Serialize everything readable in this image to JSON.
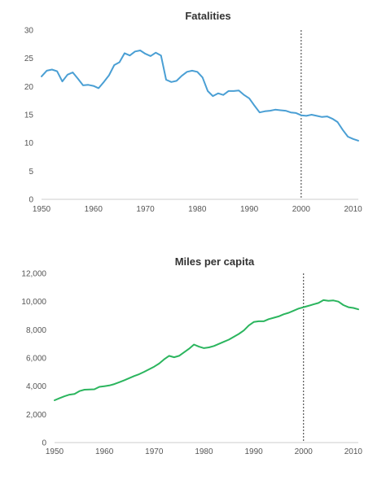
{
  "chart_data": [
    {
      "type": "line",
      "title": "Fatalities",
      "xlabel": "",
      "ylabel": "",
      "xlim": [
        1950,
        2011
      ],
      "ylim": [
        0,
        30
      ],
      "x_ticks": [
        1950,
        1960,
        1970,
        1980,
        1990,
        2000,
        2010
      ],
      "y_ticks": [
        0,
        5,
        10,
        15,
        20,
        25,
        30
      ],
      "y_tick_labels": [
        "0",
        "5",
        "10",
        "15",
        "20",
        "25",
        "30"
      ],
      "x_tick_labels": [
        "1950",
        "1960",
        "1970",
        "1980",
        "1990",
        "2000",
        "2010"
      ],
      "grid": false,
      "legend": false,
      "reference_line_x": 2000,
      "color": "#4a9fd4",
      "series": [
        {
          "x": [
            1950,
            1951,
            1952,
            1953,
            1954,
            1955,
            1956,
            1957,
            1958,
            1959,
            1960,
            1961,
            1962,
            1963,
            1964,
            1965,
            1966,
            1967,
            1968,
            1969,
            1970,
            1971,
            1972,
            1973,
            1974,
            1975,
            1976,
            1977,
            1978,
            1979,
            1980,
            1981,
            1982,
            1983,
            1984,
            1985,
            1986,
            1987,
            1988,
            1989,
            1990,
            1991,
            1992,
            1993,
            1994,
            1995,
            1996,
            1997,
            1998,
            1999,
            2000,
            2001,
            2002,
            2003,
            2004,
            2005,
            2006,
            2007,
            2008,
            2009,
            2010,
            2011
          ],
          "values": [
            21.8,
            22.8,
            23.0,
            22.7,
            20.9,
            22.1,
            22.5,
            21.4,
            20.2,
            20.3,
            20.1,
            19.7,
            20.8,
            22.0,
            23.8,
            24.3,
            25.9,
            25.5,
            26.2,
            26.4,
            25.8,
            25.4,
            26.0,
            25.5,
            21.2,
            20.8,
            21.0,
            21.9,
            22.6,
            22.8,
            22.6,
            21.6,
            19.2,
            18.3,
            18.8,
            18.5,
            19.2,
            19.2,
            19.3,
            18.5,
            17.9,
            16.6,
            15.4,
            15.6,
            15.7,
            15.9,
            15.8,
            15.7,
            15.4,
            15.3,
            14.9,
            14.8,
            15.0,
            14.8,
            14.6,
            14.7,
            14.3,
            13.7,
            12.3,
            11.1,
            10.7,
            10.4
          ]
        }
      ]
    },
    {
      "type": "line",
      "title": "Miles per capita",
      "xlabel": "",
      "ylabel": "",
      "xlim": [
        1950,
        2011
      ],
      "ylim": [
        0,
        12000
      ],
      "x_ticks": [
        1950,
        1960,
        1970,
        1980,
        1990,
        2000,
        2010
      ],
      "y_ticks": [
        0,
        2000,
        4000,
        6000,
        8000,
        10000,
        12000
      ],
      "y_tick_labels": [
        "0",
        "2,000",
        "4,000",
        "6,000",
        "8,000",
        "10,000",
        "12,000"
      ],
      "x_tick_labels": [
        "1950",
        "1960",
        "1970",
        "1980",
        "1990",
        "2000",
        "2010"
      ],
      "grid": false,
      "legend": false,
      "reference_line_x": 2000,
      "color": "#2bb55e",
      "series": [
        {
          "x": [
            1950,
            1951,
            1952,
            1953,
            1954,
            1955,
            1956,
            1957,
            1958,
            1959,
            1960,
            1961,
            1962,
            1963,
            1964,
            1965,
            1966,
            1967,
            1968,
            1969,
            1970,
            1971,
            1972,
            1973,
            1974,
            1975,
            1976,
            1977,
            1978,
            1979,
            1980,
            1981,
            1982,
            1983,
            1984,
            1985,
            1986,
            1987,
            1988,
            1989,
            1990,
            1991,
            1992,
            1993,
            1994,
            1995,
            1996,
            1997,
            1998,
            1999,
            2000,
            2001,
            2002,
            2003,
            2004,
            2005,
            2006,
            2007,
            2008,
            2009,
            2010,
            2011
          ],
          "values": [
            3000,
            3150,
            3280,
            3400,
            3450,
            3650,
            3750,
            3760,
            3780,
            3950,
            4000,
            4050,
            4150,
            4280,
            4420,
            4570,
            4720,
            4850,
            5020,
            5200,
            5380,
            5600,
            5900,
            6150,
            6050,
            6150,
            6400,
            6650,
            6950,
            6800,
            6700,
            6750,
            6850,
            7000,
            7150,
            7300,
            7500,
            7700,
            7950,
            8300,
            8550,
            8600,
            8600,
            8750,
            8850,
            8950,
            9100,
            9200,
            9350,
            9500,
            9600,
            9700,
            9800,
            9900,
            10100,
            10050,
            10080,
            10000,
            9750,
            9600,
            9550,
            9450
          ]
        }
      ]
    }
  ]
}
